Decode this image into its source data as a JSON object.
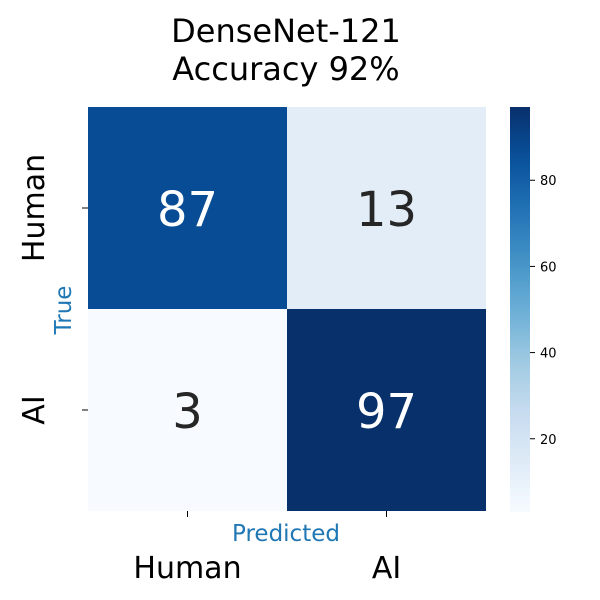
{
  "chart_data": {
    "type": "heatmap",
    "title_lines": [
      "DenseNet-121",
      "Accuracy 92%"
    ],
    "xlabel": "Predicted",
    "ylabel": "True",
    "x_categories": [
      "Human",
      "AI"
    ],
    "y_categories": [
      "Human",
      "AI"
    ],
    "values": [
      [
        87,
        13
      ],
      [
        3,
        97
      ]
    ],
    "colorbar": {
      "colormap": "Blues",
      "vmin": 3,
      "vmax": 97,
      "ticks": [
        20,
        40,
        60,
        80
      ]
    },
    "colors": {
      "axis_label": "#1f77b4",
      "text_dark": "#262626",
      "text_light": "#ffffff"
    }
  }
}
